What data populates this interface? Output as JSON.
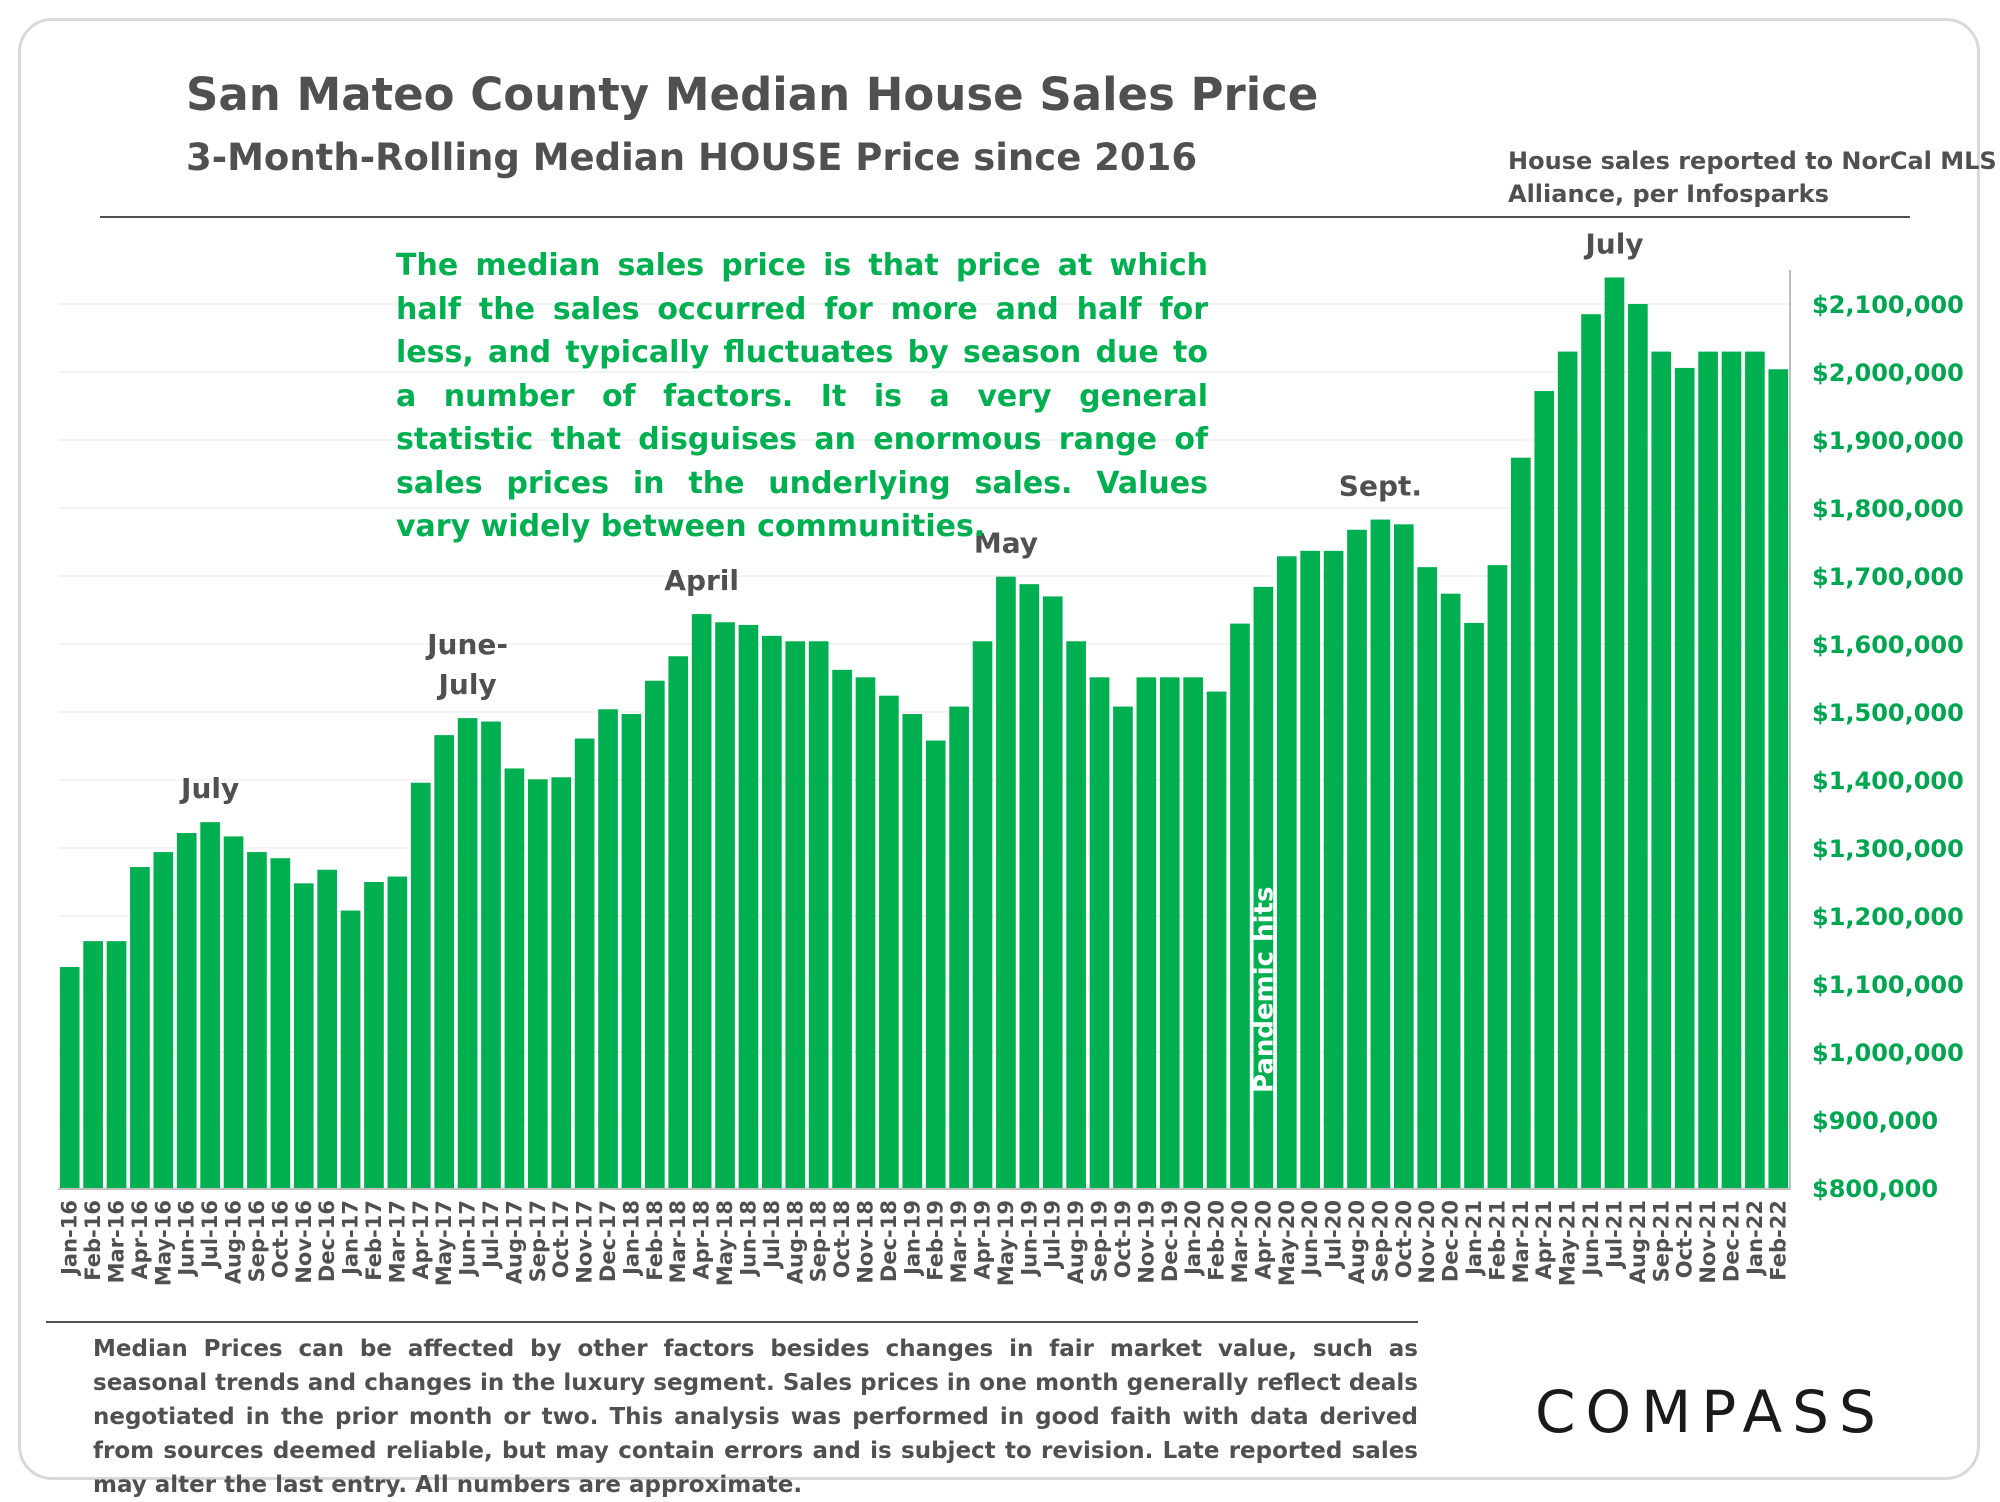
{
  "header": {
    "title": "San Mateo County Median House Sales Price",
    "subtitle": "3-Month-Rolling Median HOUSE Price since 2016",
    "source": "House sales reported to NorCal MLS Alliance, per Infosparks"
  },
  "note": "The median sales price is that price at which half the sales occurred for more and half for less, and typically fluctuates by season due to a number of factors. It is a very general statistic that disguises an enormous range of sales prices in the underlying sales. Values vary widely between communities.",
  "footer": "Median Prices can be affected by other factors besides changes in fair market value, such as seasonal trends and changes in the luxury segment. Sales prices in one month generally reflect deals negotiated in the prior month or two. This analysis was performed in good faith with data derived from sources deemed reliable, but may contain errors and is subject to revision. Late reported sales may alter the last entry. All numbers are approximate.",
  "logo": "COMPASS",
  "colors": {
    "bar": "#00b050",
    "tick": "#00a650",
    "text": "#505050"
  },
  "chart_data": {
    "type": "bar",
    "categories": [
      "Jan-16",
      "Feb-16",
      "Mar-16",
      "Apr-16",
      "May-16",
      "Jun-16",
      "Jul-16",
      "Aug-16",
      "Sep-16",
      "Oct-16",
      "Nov-16",
      "Dec-16",
      "Jan-17",
      "Feb-17",
      "Mar-17",
      "Apr-17",
      "May-17",
      "Jun-17",
      "Jul-17",
      "Aug-17",
      "Sep-17",
      "Oct-17",
      "Nov-17",
      "Dec-17",
      "Jan-18",
      "Feb-18",
      "Mar-18",
      "Apr-18",
      "May-18",
      "Jun-18",
      "Jul-18",
      "Aug-18",
      "Sep-18",
      "Oct-18",
      "Nov-18",
      "Dec-18",
      "Jan-19",
      "Feb-19",
      "Mar-19",
      "Apr-19",
      "May-19",
      "Jun-19",
      "Jul-19",
      "Aug-19",
      "Sep-19",
      "Oct-19",
      "Nov-19",
      "Dec-19",
      "Jan-20",
      "Feb-20",
      "Mar-20",
      "Apr-20",
      "May-20",
      "Jun-20",
      "Jul-20",
      "Aug-20",
      "Sep-20",
      "Oct-20",
      "Nov-20",
      "Dec-20",
      "Jan-21",
      "Feb-21",
      "Mar-21",
      "Apr-21",
      "May-21",
      "Jun-21",
      "Jul-21",
      "Aug-21",
      "Sep-21",
      "Oct-21",
      "Nov-21",
      "Dec-21",
      "Jan-22",
      "Feb-22"
    ],
    "values": [
      1125000,
      1163000,
      1163000,
      1272000,
      1294000,
      1322000,
      1338000,
      1317000,
      1294000,
      1285000,
      1248000,
      1268000,
      1208000,
      1250000,
      1258000,
      1396000,
      1466000,
      1491000,
      1486000,
      1417000,
      1401000,
      1404000,
      1461000,
      1504000,
      1497000,
      1546000,
      1582000,
      1644000,
      1632000,
      1628000,
      1612000,
      1604000,
      1604000,
      1562000,
      1551000,
      1524000,
      1497000,
      1458000,
      1508000,
      1604000,
      1699000,
      1688000,
      1670000,
      1604000,
      1551000,
      1508000,
      1551000,
      1551000,
      1551000,
      1530000,
      1630000,
      1684000,
      1729000,
      1737000,
      1737000,
      1768000,
      1783000,
      1776000,
      1713000,
      1674000,
      1631000,
      1716000,
      1874000,
      1972000,
      2030000,
      2085000,
      2139000,
      2100000,
      2030000,
      2006000,
      2030000,
      2030000,
      2030000,
      2004000
    ],
    "ylim": [
      800000,
      2150000
    ],
    "yticks": [
      800000,
      900000,
      1000000,
      1100000,
      1200000,
      1300000,
      1400000,
      1500000,
      1600000,
      1700000,
      1800000,
      1900000,
      2000000,
      2100000
    ],
    "ytick_labels": [
      "$800,000",
      "$900,000",
      "$1,000,000",
      "$1,100,000",
      "$1,200,000",
      "$1,300,000",
      "$1,400,000",
      "$1,500,000",
      "$1,600,000",
      "$1,700,000",
      "$1,800,000",
      "$1,900,000",
      "$2,000,000",
      "$2,100,000"
    ],
    "annotations": [
      {
        "text": "July",
        "at": "Jul-16"
      },
      {
        "text": "June-",
        "at": "Jun-17"
      },
      {
        "text": "July",
        "at": "Jun-17"
      },
      {
        "text": "April",
        "at": "Apr-18"
      },
      {
        "text": "May",
        "at": "May-19"
      },
      {
        "text": "Sept.",
        "at": "Sep-20"
      },
      {
        "text": "July",
        "at": "Jul-21"
      }
    ],
    "event_marker": {
      "text": "Pandemic hits",
      "at": "Apr-20"
    },
    "grid": true
  }
}
